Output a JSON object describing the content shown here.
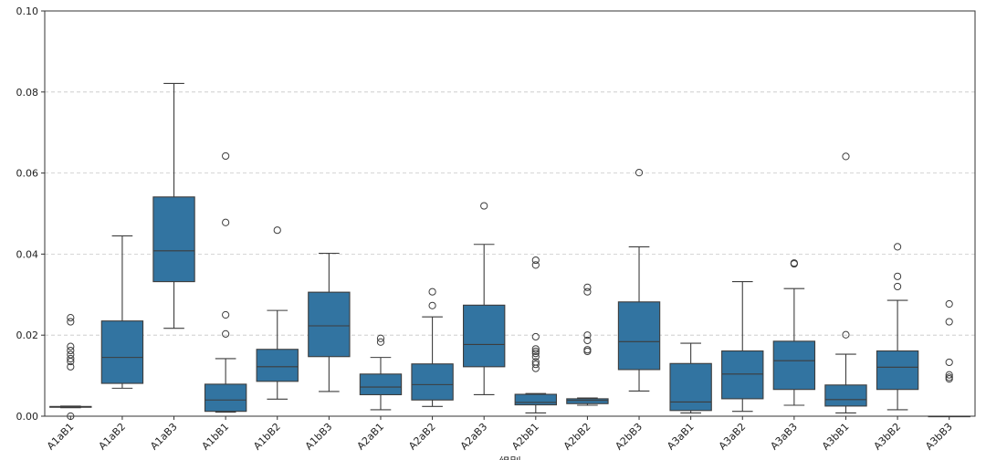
{
  "chart_data": {
    "type": "box",
    "xlabel": "组别",
    "ylabel": "",
    "ylim": [
      0,
      0.1
    ],
    "yticks": [
      "0.00",
      "0.02",
      "0.04",
      "0.06",
      "0.08",
      "0.10"
    ],
    "ytick_values": [
      0,
      0.02,
      0.04,
      0.06,
      0.08,
      0.1
    ],
    "grid": "y-dashed",
    "box_color": "#3274a1",
    "line_color": "#3d3d3d",
    "grid_color": "#c8c8c8",
    "categories": [
      "A1aB1",
      "A1aB2",
      "A1aB3",
      "A1bB1",
      "A1bB2",
      "A1bB3",
      "A2aB1",
      "A2aB2",
      "A2aB3",
      "A2bB1",
      "A2bB2",
      "A2bB3",
      "A3aB1",
      "A3aB2",
      "A3aB3",
      "A3bB1",
      "A3bB2",
      "A3bB3"
    ],
    "boxes": [
      {
        "name": "A1aB1",
        "whislo": 0.0021,
        "q1": 0.0022,
        "med": 0.0023,
        "q3": 0.0024,
        "whishi": 0.0025,
        "fliers": [
          0.0243,
          0.0233,
          0.0172,
          0.0162,
          0.0152,
          0.0142,
          0.0135,
          0.0122,
          0.0
        ]
      },
      {
        "name": "A1aB2",
        "whislo": 0.0069,
        "q1": 0.0081,
        "med": 0.0145,
        "q3": 0.0235,
        "whishi": 0.0445,
        "fliers": []
      },
      {
        "name": "A1aB3",
        "whislo": 0.0217,
        "q1": 0.0332,
        "med": 0.0408,
        "q3": 0.0541,
        "whishi": 0.0821,
        "fliers": []
      },
      {
        "name": "A1bB1",
        "whislo": 0.001,
        "q1": 0.0012,
        "med": 0.004,
        "q3": 0.0079,
        "whishi": 0.0142,
        "fliers": [
          0.0642,
          0.0478,
          0.025,
          0.0203
        ]
      },
      {
        "name": "A1bB2",
        "whislo": 0.0042,
        "q1": 0.0086,
        "med": 0.0122,
        "q3": 0.0165,
        "whishi": 0.0261,
        "fliers": [
          0.0459
        ]
      },
      {
        "name": "A1bB3",
        "whislo": 0.0061,
        "q1": 0.0147,
        "med": 0.0223,
        "q3": 0.0306,
        "whishi": 0.0402,
        "fliers": []
      },
      {
        "name": "A2aB1",
        "whislo": 0.0016,
        "q1": 0.0053,
        "med": 0.0072,
        "q3": 0.0104,
        "whishi": 0.0145,
        "fliers": [
          0.0192,
          0.0183
        ]
      },
      {
        "name": "A2aB2",
        "whislo": 0.0024,
        "q1": 0.004,
        "med": 0.0078,
        "q3": 0.0129,
        "whishi": 0.0245,
        "fliers": [
          0.0307,
          0.0273
        ]
      },
      {
        "name": "A2aB3",
        "whislo": 0.0053,
        "q1": 0.0122,
        "med": 0.0177,
        "q3": 0.0274,
        "whishi": 0.0424,
        "fliers": [
          0.0519
        ]
      },
      {
        "name": "A2bB1",
        "whislo": 0.0008,
        "q1": 0.0028,
        "med": 0.0034,
        "q3": 0.0054,
        "whishi": 0.0056,
        "fliers": [
          0.0385,
          0.0373,
          0.0196,
          0.0166,
          0.016,
          0.0155,
          0.0147,
          0.0134,
          0.0128,
          0.0118
        ]
      },
      {
        "name": "A2bB2",
        "whislo": 0.0027,
        "q1": 0.0031,
        "med": 0.0039,
        "q3": 0.0043,
        "whishi": 0.0045,
        "fliers": [
          0.0318,
          0.0307,
          0.02,
          0.0187,
          0.0164,
          0.016
        ]
      },
      {
        "name": "A2bB3",
        "whislo": 0.0062,
        "q1": 0.0115,
        "med": 0.0184,
        "q3": 0.0282,
        "whishi": 0.0418,
        "fliers": [
          0.0601
        ]
      },
      {
        "name": "A3aB1",
        "whislo": 0.0008,
        "q1": 0.0014,
        "med": 0.0035,
        "q3": 0.013,
        "whishi": 0.018,
        "fliers": []
      },
      {
        "name": "A3aB2",
        "whislo": 0.0012,
        "q1": 0.0043,
        "med": 0.0104,
        "q3": 0.0161,
        "whishi": 0.0332,
        "fliers": []
      },
      {
        "name": "A3aB3",
        "whislo": 0.0027,
        "q1": 0.0066,
        "med": 0.0137,
        "q3": 0.0185,
        "whishi": 0.0315,
        "fliers": [
          0.0378,
          0.0376
        ]
      },
      {
        "name": "A3bB1",
        "whislo": 0.0008,
        "q1": 0.0025,
        "med": 0.0041,
        "q3": 0.0077,
        "whishi": 0.0153,
        "fliers": [
          0.0641,
          0.0201
        ]
      },
      {
        "name": "A3bB2",
        "whislo": 0.0016,
        "q1": 0.0066,
        "med": 0.0121,
        "q3": 0.0161,
        "whishi": 0.0286,
        "fliers": [
          0.0418,
          0.0345,
          0.032
        ]
      },
      {
        "name": "A3bB3",
        "whislo": 0.0,
        "q1": 0.0,
        "med": 0.0,
        "q3": 0.0,
        "whishi": 0.0,
        "fliers": [
          0.0277,
          0.0233,
          0.0133,
          0.0102,
          0.0096,
          0.0092
        ]
      }
    ]
  }
}
